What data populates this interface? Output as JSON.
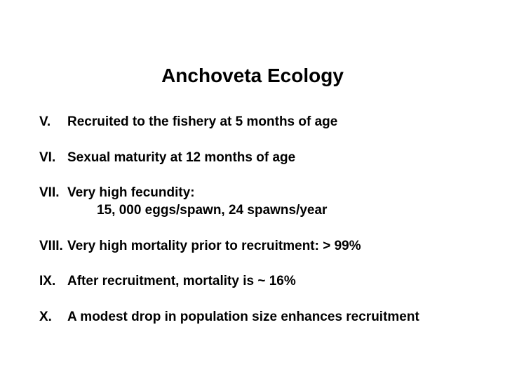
{
  "title": "Anchoveta Ecology",
  "colors": {
    "background": "#ffffff",
    "text": "#000000"
  },
  "typography": {
    "title_fontsize": 28,
    "item_fontsize": 19,
    "font_family": "Arial",
    "weight": "bold"
  },
  "items": [
    {
      "numeral": "V.",
      "text": "Recruited to the fishery at 5 months of age"
    },
    {
      "numeral": "VI.",
      "text": "Sexual maturity at 12 months of age"
    },
    {
      "numeral": "VII.",
      "text": "Very high fecundity:",
      "text2": "15, 000 eggs/spawn, 24 spawns/year"
    },
    {
      "numeral": "VIII.",
      "text": "Very high mortality prior to recruitment:  > 99%"
    },
    {
      "numeral": "IX.",
      "text": "After recruitment, mortality is ~ 16%"
    },
    {
      "numeral": "X.",
      "text": "A modest drop in population size enhances recruitment"
    }
  ]
}
